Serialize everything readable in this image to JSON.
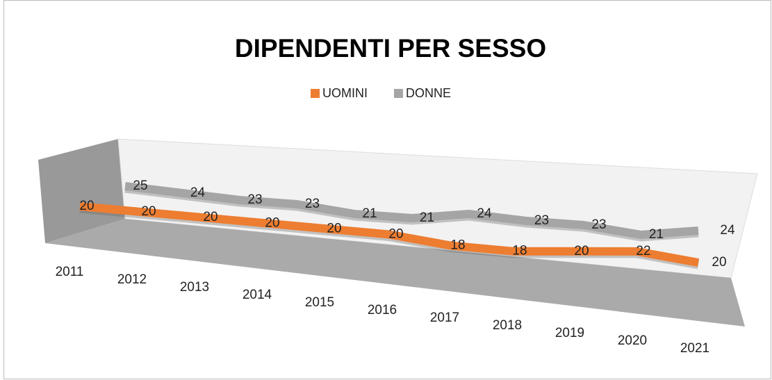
{
  "chart_data": {
    "type": "line3d",
    "title": "DIPENDENTI PER SESSO",
    "categories": [
      "2011",
      "2012",
      "2013",
      "2014",
      "2015",
      "2016",
      "2017",
      "2018",
      "2019",
      "2020",
      "2021"
    ],
    "series": [
      {
        "name": "UOMINI",
        "color": "#ed7d31",
        "values": [
          20,
          20,
          20,
          20,
          20,
          20,
          18,
          18,
          20,
          22,
          20
        ]
      },
      {
        "name": "DONNE",
        "color": "#a5a5a5",
        "values": [
          25,
          24,
          23,
          23,
          21,
          21,
          24,
          23,
          23,
          21,
          24
        ]
      }
    ],
    "legend": "top"
  }
}
